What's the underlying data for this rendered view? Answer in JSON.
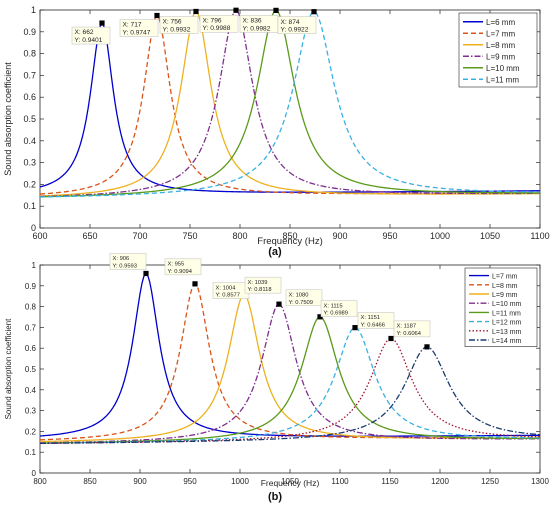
{
  "chart_data": [
    {
      "type": "line",
      "panel_label": "(a)",
      "xlabel": "Frequency (Hz)",
      "ylabel": "Sound absorption coefficient",
      "xlim": [
        600,
        1100
      ],
      "ylim": [
        0,
        1
      ],
      "xticks": [
        600,
        650,
        700,
        750,
        800,
        850,
        900,
        950,
        1000,
        1050,
        1100
      ],
      "yticks": [
        0,
        0.1,
        0.2,
        0.3,
        0.4,
        0.5,
        0.6,
        0.7,
        0.8,
        0.9,
        1
      ],
      "grid": false,
      "legend_position": "top-right",
      "series": [
        {
          "name": "L=6 mm",
          "color": "#0000cc",
          "dash": "solid",
          "peak_x": 662,
          "peak_y": 0.9401,
          "base_y": 0.15
        },
        {
          "name": "L=7 mm",
          "color": "#d9541a",
          "dash": "dashed",
          "peak_x": 717,
          "peak_y": 0.9747,
          "base_y": 0.14
        },
        {
          "name": "L=8 mm",
          "color": "#edb120",
          "dash": "solid",
          "peak_x": 756,
          "peak_y": 0.9932,
          "base_y": 0.135
        },
        {
          "name": "L=9 mm",
          "color": "#7e2f8e",
          "dash": "dashdot",
          "peak_x": 796,
          "peak_y": 0.9988,
          "base_y": 0.135
        },
        {
          "name": "L=10 mm",
          "color": "#5a9a1a",
          "dash": "solid",
          "peak_x": 836,
          "peak_y": 0.9982,
          "base_y": 0.135
        },
        {
          "name": "L=11 mm",
          "color": "#3bb0e0",
          "dash": "dashed",
          "peak_x": 874,
          "peak_y": 0.9922,
          "base_y": 0.135
        }
      ],
      "annotations": [
        {
          "x_label": "X: 662",
          "y_label": "Y: 0.9401"
        },
        {
          "x_label": "X: 717",
          "y_label": "Y: 0.9747"
        },
        {
          "x_label": "X: 756",
          "y_label": "Y: 0.9932"
        },
        {
          "x_label": "X: 796",
          "y_label": "Y: 0.9988"
        },
        {
          "x_label": "X: 836",
          "y_label": "Y: 0.9982"
        },
        {
          "x_label": "X: 874",
          "y_label": "Y: 0.9922"
        }
      ]
    },
    {
      "type": "line",
      "panel_label": "(b)",
      "xlabel": "Frequency (Hz)",
      "ylabel": "Sound absorption coefficient",
      "xlim": [
        800,
        1300
      ],
      "ylim": [
        0,
        1
      ],
      "xticks": [
        800,
        850,
        900,
        950,
        1000,
        1050,
        1100,
        1150,
        1200,
        1250,
        1300
      ],
      "yticks": [
        0,
        0.1,
        0.2,
        0.3,
        0.4,
        0.5,
        0.6,
        0.7,
        0.8,
        0.9,
        1
      ],
      "grid": false,
      "legend_position": "top-right",
      "series": [
        {
          "name": "L=7 mm",
          "color": "#0000cc",
          "dash": "solid",
          "peak_x": 906,
          "peak_y": 0.9593,
          "base_y": 0.16
        },
        {
          "name": "L=8 mm",
          "color": "#d9541a",
          "dash": "dashed",
          "peak_x": 955,
          "peak_y": 0.9094,
          "base_y": 0.15
        },
        {
          "name": "L=9 mm",
          "color": "#edb120",
          "dash": "solid",
          "peak_x": 1004,
          "peak_y": 0.8577,
          "base_y": 0.145
        },
        {
          "name": "L=10 mm",
          "color": "#7e2f8e",
          "dash": "dashdot",
          "peak_x": 1039,
          "peak_y": 0.8118,
          "base_y": 0.14
        },
        {
          "name": "L=11 mm",
          "color": "#5a9a1a",
          "dash": "solid",
          "peak_x": 1080,
          "peak_y": 0.7509,
          "base_y": 0.14
        },
        {
          "name": "L=12 mm",
          "color": "#3bb0e0",
          "dash": "dashed",
          "peak_x": 1115,
          "peak_y": 0.6989,
          "base_y": 0.14
        },
        {
          "name": "L=13 mm",
          "color": "#a2142f",
          "dash": "dotted",
          "peak_x": 1151,
          "peak_y": 0.6466,
          "base_y": 0.14
        },
        {
          "name": "L=14 mm",
          "color": "#1a3a6e",
          "dash": "dashdot",
          "peak_x": 1187,
          "peak_y": 0.6064,
          "base_y": 0.14
        }
      ],
      "annotations": [
        {
          "x_label": "X: 906",
          "y_label": "Y: 0.9593"
        },
        {
          "x_label": "X: 955",
          "y_label": "Y: 0.9094"
        },
        {
          "x_label": "X: 1004",
          "y_label": "Y: 0.8577"
        },
        {
          "x_label": "X: 1039",
          "y_label": "Y: 0.8118"
        },
        {
          "x_label": "X: 1080",
          "y_label": "Y: 0.7509"
        },
        {
          "x_label": "X: 1115",
          "y_label": "Y: 0.6989"
        },
        {
          "x_label": "X: 1151",
          "y_label": "Y: 0.6466"
        },
        {
          "x_label": "X: 1187",
          "y_label": "Y: 0.6064"
        }
      ]
    }
  ]
}
